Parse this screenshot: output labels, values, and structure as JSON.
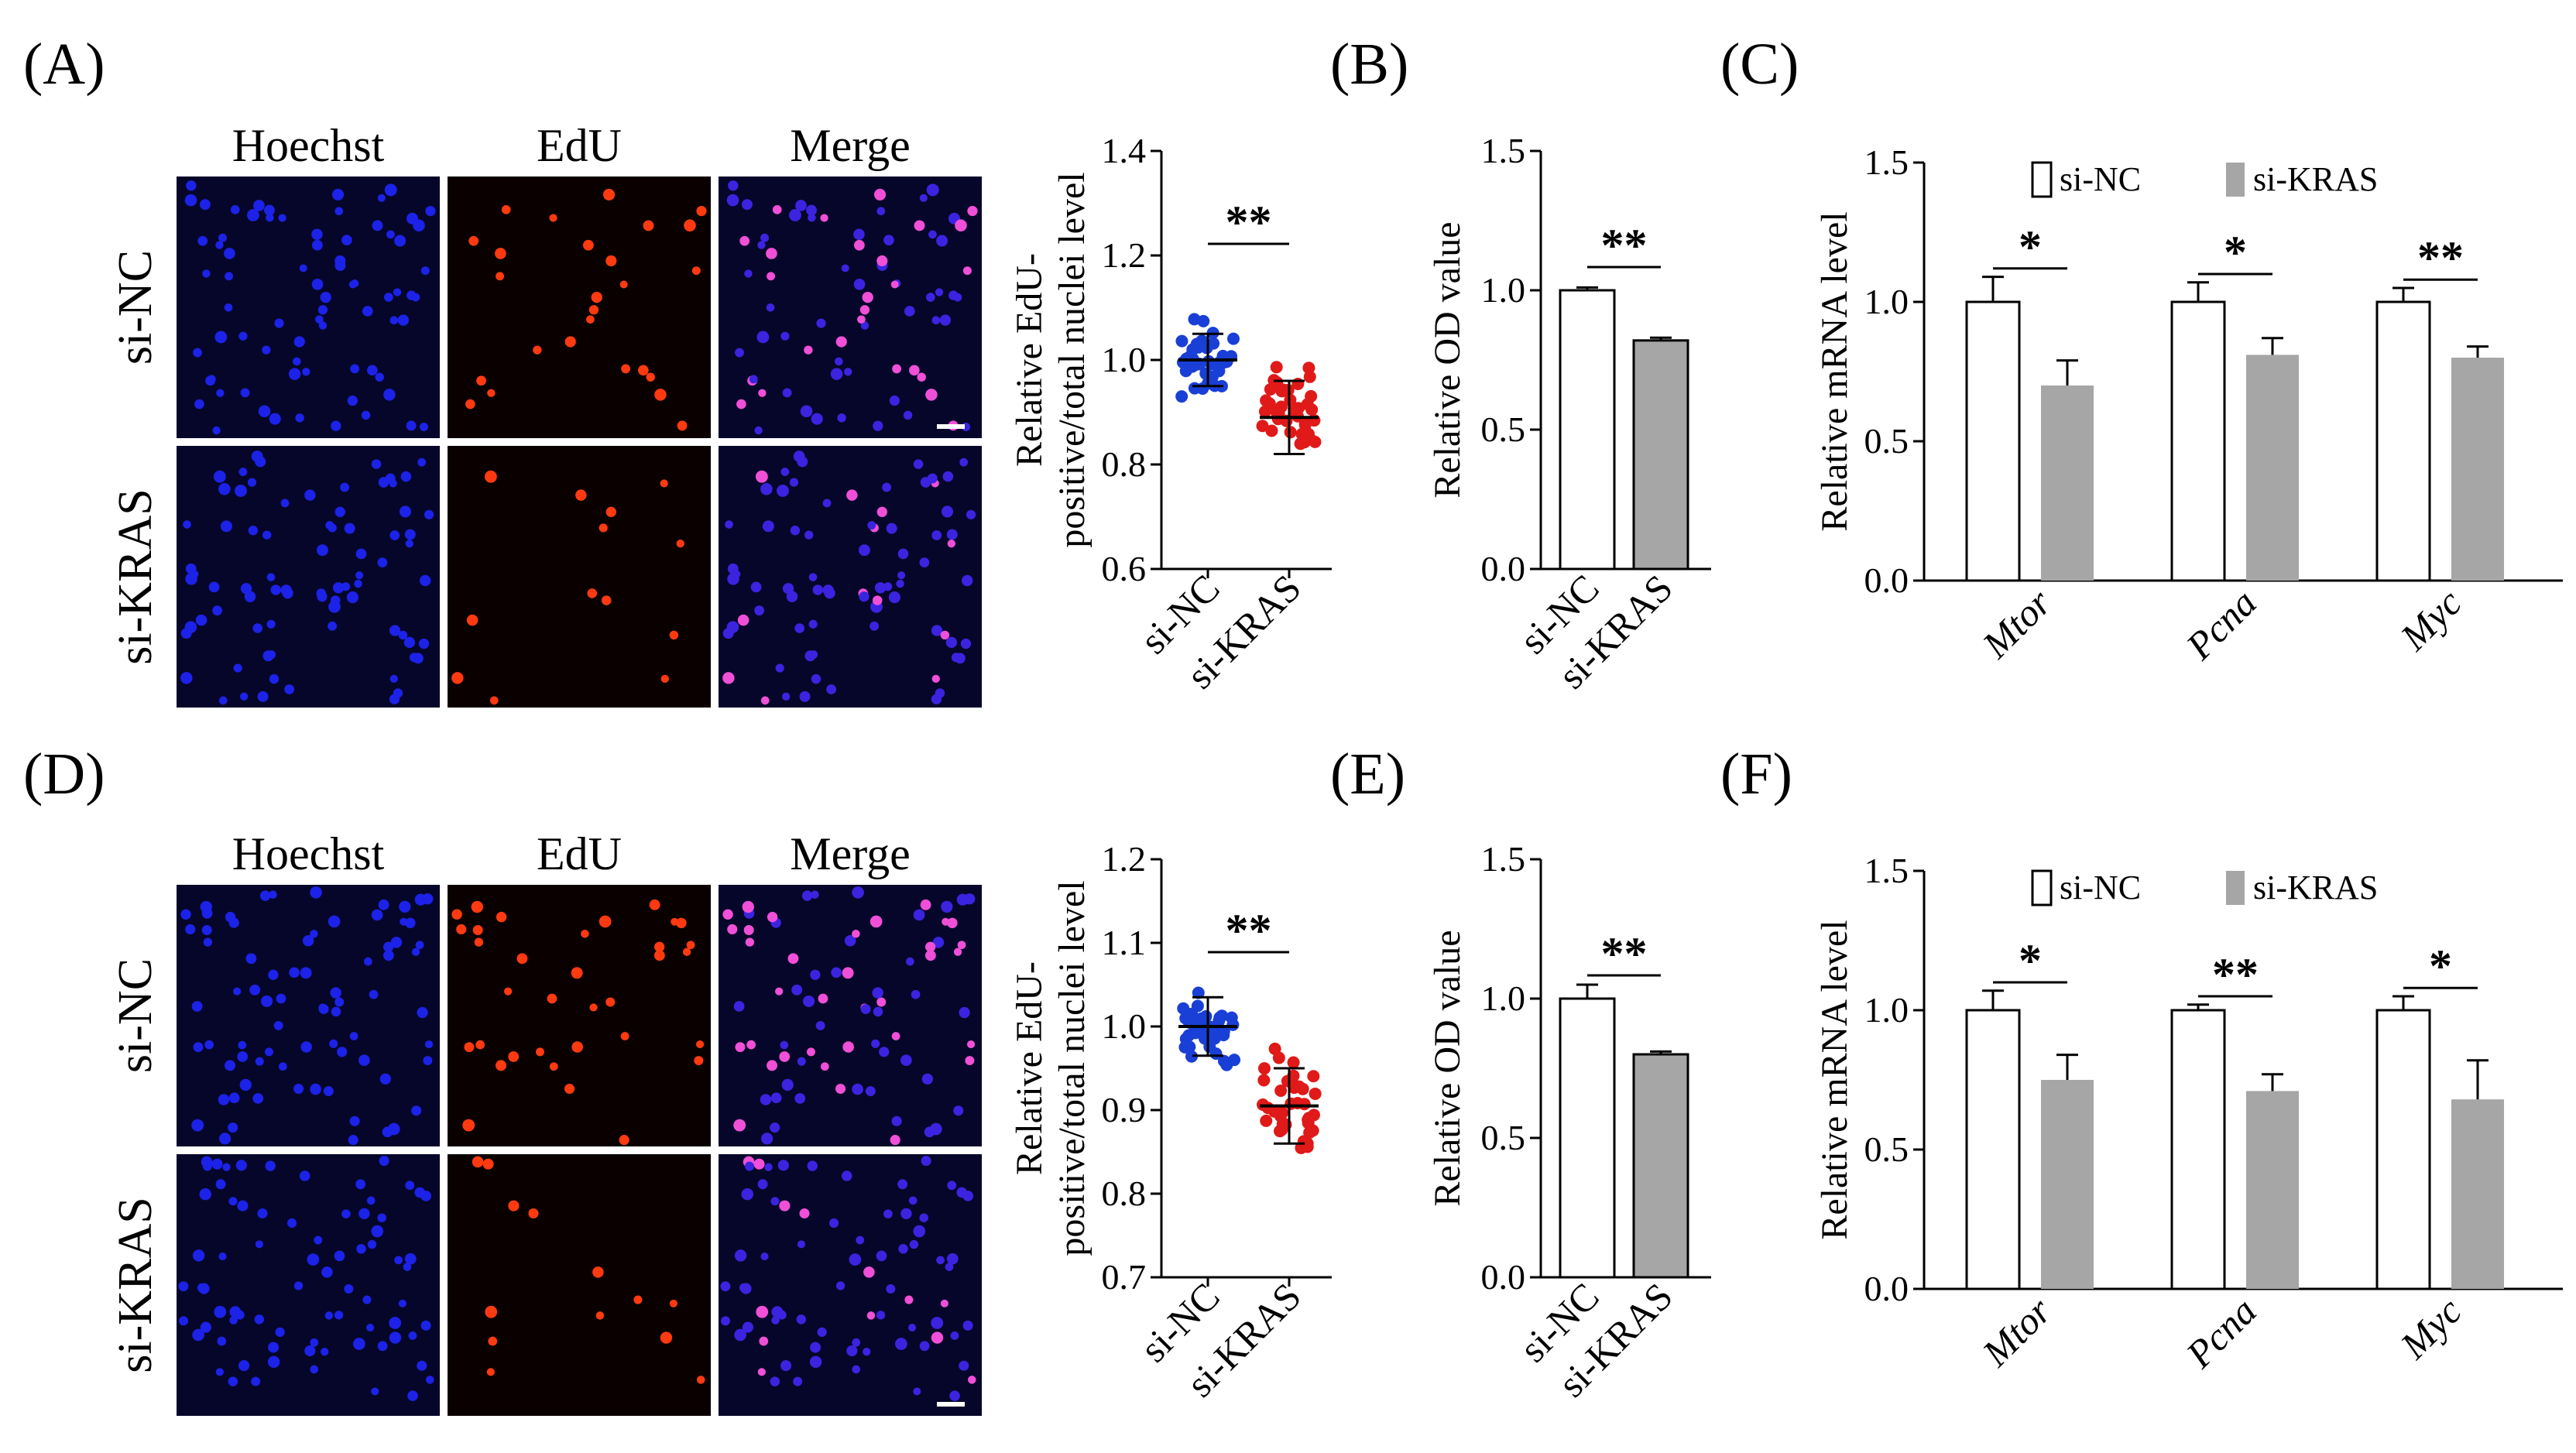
{
  "figure": {
    "rows": [
      {
        "micrograph": {
          "label": "(A)",
          "columns": [
            "Hoechst",
            "EdU",
            "Merge"
          ],
          "rows": [
            "si-NC",
            "si-KRAS"
          ]
        },
        "scatter": {
          "type": "scatter",
          "ylabel": "Relative EdU-\npositive/total nuclei level",
          "ylim": [
            0.6,
            1.4
          ],
          "yticks": [
            "0.6",
            "0.8",
            "1.0",
            "1.2",
            "1.4"
          ],
          "categories": [
            "si-NC",
            "si-KRAS"
          ],
          "series": [
            {
              "name": "si-NC",
              "color": "#1a3fd6",
              "mean": 1.0,
              "sd": 0.05
            },
            {
              "name": "si-KRAS",
              "color": "#e01919",
              "mean": 0.89,
              "sd": 0.07
            }
          ],
          "significance": "**"
        },
        "od": {
          "label": "(B)",
          "type": "bar",
          "ylabel": "Relative OD value",
          "ylim": [
            0.0,
            1.5
          ],
          "yticks": [
            "0.0",
            "0.5",
            "1.0",
            "1.5"
          ],
          "categories": [
            "si-NC",
            "si-KRAS"
          ],
          "values": [
            1.0,
            0.82
          ],
          "errors": [
            0.01,
            0.01
          ],
          "significance": "**"
        },
        "mrna": {
          "label": "(C)",
          "type": "bar",
          "ylabel": "Relative mRNA level",
          "ylim": [
            0.0,
            1.5
          ],
          "yticks": [
            "0.0",
            "0.5",
            "1.0",
            "1.5"
          ],
          "categories": [
            "Mtor",
            "Pcna",
            "Myc"
          ],
          "series": [
            {
              "name": "si-NC",
              "values": [
                1.0,
                1.0,
                1.0
              ],
              "errors": [
                0.09,
                0.07,
                0.05
              ]
            },
            {
              "name": "si-KRAS",
              "values": [
                0.7,
                0.81,
                0.8
              ],
              "errors": [
                0.09,
                0.06,
                0.04
              ]
            }
          ],
          "significance": [
            "*",
            "*",
            "**"
          ]
        }
      },
      {
        "micrograph": {
          "label": "(D)",
          "columns": [
            "Hoechst",
            "EdU",
            "Merge"
          ],
          "rows": [
            "si-NC",
            "si-KRAS"
          ]
        },
        "scatter": {
          "type": "scatter",
          "ylabel": "Relative EdU-\npositive/total nuclei level",
          "ylim": [
            0.7,
            1.2
          ],
          "yticks": [
            "0.7",
            "0.8",
            "0.9",
            "1.0",
            "1.1",
            "1.2"
          ],
          "categories": [
            "si-NC",
            "si-KRAS"
          ],
          "series": [
            {
              "name": "si-NC",
              "color": "#1a3fd6",
              "mean": 1.0,
              "sd": 0.035
            },
            {
              "name": "si-KRAS",
              "color": "#e01919",
              "mean": 0.905,
              "sd": 0.045
            }
          ],
          "significance": "**"
        },
        "od": {
          "label": "(E)",
          "type": "bar",
          "ylabel": "Relative OD value",
          "ylim": [
            0.0,
            1.5
          ],
          "yticks": [
            "0.0",
            "0.5",
            "1.0",
            "1.5"
          ],
          "categories": [
            "si-NC",
            "si-KRAS"
          ],
          "values": [
            1.0,
            0.8
          ],
          "errors": [
            0.05,
            0.01
          ],
          "significance": "**"
        },
        "mrna": {
          "label": "(F)",
          "type": "bar",
          "ylabel": "Relative mRNA level",
          "ylim": [
            0.0,
            1.5
          ],
          "yticks": [
            "0.0",
            "0.5",
            "1.0",
            "1.5"
          ],
          "categories": [
            "Mtor",
            "Pcna",
            "Myc"
          ],
          "series": [
            {
              "name": "si-NC",
              "values": [
                1.0,
                1.0,
                1.0
              ],
              "errors": [
                0.07,
                0.02,
                0.05
              ]
            },
            {
              "name": "si-KRAS",
              "values": [
                0.75,
                0.71,
                0.68
              ],
              "errors": [
                0.09,
                0.06,
                0.14
              ]
            }
          ],
          "significance": [
            "*",
            "**",
            "*"
          ]
        }
      }
    ]
  },
  "chart_data": [
    {
      "type": "scatter",
      "panel": "A",
      "categories": [
        "si-NC",
        "si-KRAS"
      ],
      "means": [
        1.0,
        0.89
      ],
      "ylim": [
        0.6,
        1.4
      ],
      "ylabel": "Relative EdU-positive/total nuclei level"
    },
    {
      "type": "bar",
      "panel": "B",
      "categories": [
        "si-NC",
        "si-KRAS"
      ],
      "values": [
        1.0,
        0.82
      ],
      "ylim": [
        0.0,
        1.5
      ],
      "ylabel": "Relative OD value"
    },
    {
      "type": "bar",
      "panel": "C",
      "categories": [
        "Mtor",
        "Pcna",
        "Myc"
      ],
      "series": [
        {
          "name": "si-NC",
          "values": [
            1.0,
            1.0,
            1.0
          ]
        },
        {
          "name": "si-KRAS",
          "values": [
            0.7,
            0.81,
            0.8
          ]
        }
      ],
      "ylim": [
        0.0,
        1.5
      ],
      "ylabel": "Relative mRNA level"
    },
    {
      "type": "scatter",
      "panel": "D",
      "categories": [
        "si-NC",
        "si-KRAS"
      ],
      "means": [
        1.0,
        0.905
      ],
      "ylim": [
        0.7,
        1.2
      ],
      "ylabel": "Relative EdU-positive/total nuclei level"
    },
    {
      "type": "bar",
      "panel": "E",
      "categories": [
        "si-NC",
        "si-KRAS"
      ],
      "values": [
        1.0,
        0.8
      ],
      "ylim": [
        0.0,
        1.5
      ],
      "ylabel": "Relative OD value"
    },
    {
      "type": "bar",
      "panel": "F",
      "categories": [
        "Mtor",
        "Pcna",
        "Myc"
      ],
      "series": [
        {
          "name": "si-NC",
          "values": [
            1.0,
            1.0,
            1.0
          ]
        },
        {
          "name": "si-KRAS",
          "values": [
            0.75,
            0.71,
            0.68
          ]
        }
      ],
      "ylim": [
        0.0,
        1.5
      ],
      "ylabel": "Relative mRNA level"
    }
  ]
}
